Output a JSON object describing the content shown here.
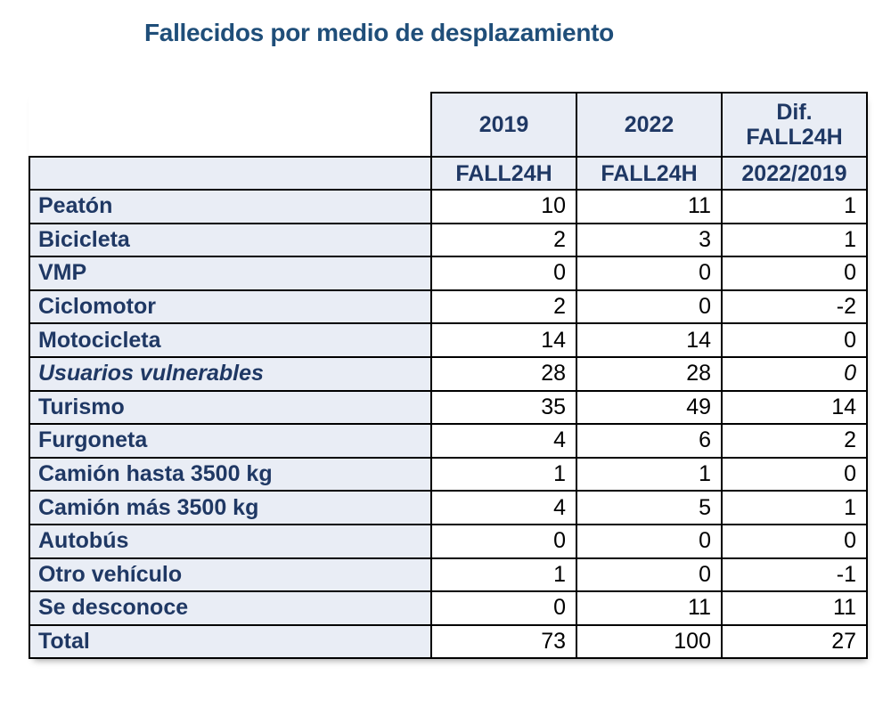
{
  "title": "Fallecidos por medio de desplazamiento",
  "colors": {
    "title_text": "#1f4e79",
    "table_header_text": "#1f3864",
    "row_label_text": "#1f3864",
    "value_text": "#000000",
    "cell_fill": "#e9edf5",
    "border": "#000000",
    "background": "#ffffff"
  },
  "table": {
    "year_headers": {
      "y2019": "2019",
      "y2022": "2022",
      "dif_line1": "Dif.",
      "dif_line2": "FALL24H"
    },
    "sub_headers": {
      "c2019": "FALL24H",
      "c2022": "FALL24H",
      "dif": "2022/2019"
    },
    "rows": [
      {
        "label": "Peatón",
        "v2019": "10",
        "v2022": "11",
        "dif": "1"
      },
      {
        "label": "Bicicleta",
        "v2019": "2",
        "v2022": "3",
        "dif": "1"
      },
      {
        "label": "VMP",
        "v2019": "0",
        "v2022": "0",
        "dif": "0"
      },
      {
        "label": "Ciclomotor",
        "v2019": "2",
        "v2022": "0",
        "dif": "-2"
      },
      {
        "label": "Motocicleta",
        "v2019": "14",
        "v2022": "14",
        "dif": "0"
      },
      {
        "label": "Usuarios vulnerables",
        "v2019": "28",
        "v2022": "28",
        "dif": "0"
      },
      {
        "label": "Turismo",
        "v2019": "35",
        "v2022": "49",
        "dif": "14"
      },
      {
        "label": "Furgoneta",
        "v2019": "4",
        "v2022": "6",
        "dif": "2"
      },
      {
        "label": "Camión hasta 3500 kg",
        "v2019": "1",
        "v2022": "1",
        "dif": "0"
      },
      {
        "label": "Camión más 3500 kg",
        "v2019": "4",
        "v2022": "5",
        "dif": "1"
      },
      {
        "label": "Autobús",
        "v2019": "0",
        "v2022": "0",
        "dif": "0"
      },
      {
        "label": "Otro vehículo",
        "v2019": "1",
        "v2022": "0",
        "dif": "-1"
      },
      {
        "label": "Se desconoce",
        "v2019": "0",
        "v2022": "11",
        "dif": "11"
      },
      {
        "label": "Total",
        "v2019": "73",
        "v2022": "100",
        "dif": "27"
      }
    ]
  }
}
